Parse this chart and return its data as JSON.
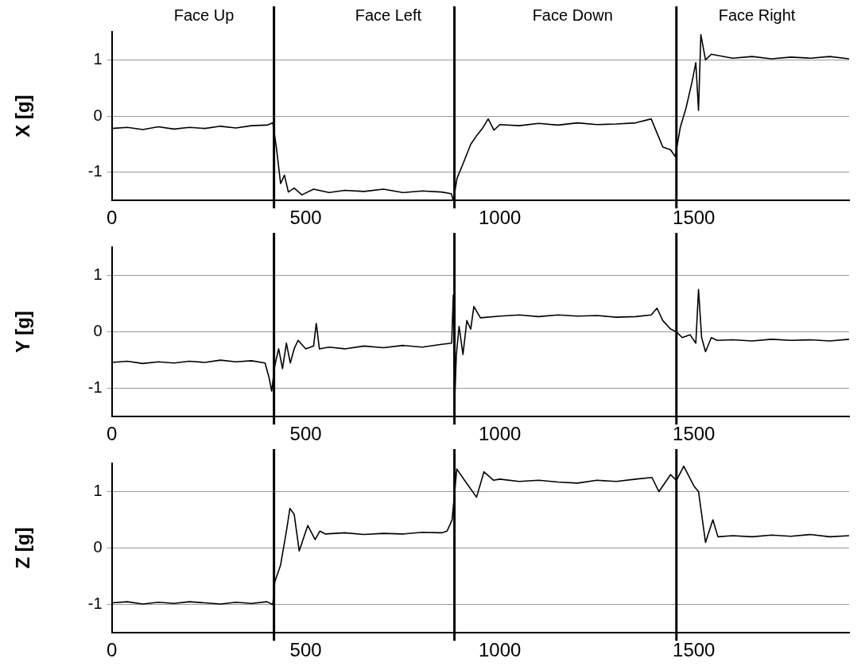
{
  "chart_data": [
    {
      "type": "line",
      "ylabel": "X [g]",
      "xlim": [
        0,
        1900
      ],
      "xticks": [
        0,
        500,
        1000,
        1500
      ],
      "ylim": [
        -1.5,
        1.5
      ],
      "yticks": [
        -1,
        0,
        1
      ],
      "grid": "y",
      "legend": false,
      "marker": "none",
      "line_style": "solid",
      "annotations": [
        "Face Up",
        "Face Left",
        "Face Down",
        "Face Right"
      ],
      "ref_lines": [
        {
          "axis": "x",
          "value": 418,
          "color": "#000000"
        },
        {
          "axis": "x",
          "value": 883,
          "color": "#000000"
        },
        {
          "axis": "x",
          "value": 1455,
          "color": "#000000"
        }
      ],
      "series": [
        {
          "color": "#000000",
          "x": [
            0,
            40,
            80,
            120,
            160,
            200,
            240,
            280,
            320,
            360,
            400,
            415,
            425,
            435,
            445,
            455,
            470,
            490,
            520,
            560,
            600,
            650,
            700,
            750,
            800,
            850,
            875,
            880,
            890,
            905,
            925,
            940,
            955,
            970,
            985,
            1000,
            1050,
            1100,
            1150,
            1200,
            1250,
            1300,
            1350,
            1390,
            1405,
            1420,
            1440,
            1452,
            1465,
            1480,
            1495,
            1505,
            1512,
            1518,
            1530,
            1545,
            1600,
            1650,
            1700,
            1750,
            1800,
            1850,
            1900
          ],
          "values": [
            -0.22,
            -0.2,
            -0.24,
            -0.19,
            -0.23,
            -0.2,
            -0.22,
            -0.18,
            -0.21,
            -0.17,
            -0.16,
            -0.12,
            -0.6,
            -1.2,
            -1.05,
            -1.35,
            -1.28,
            -1.4,
            -1.3,
            -1.36,
            -1.32,
            -1.34,
            -1.3,
            -1.36,
            -1.33,
            -1.35,
            -1.38,
            -1.5,
            -1.1,
            -0.85,
            -0.5,
            -0.35,
            -0.22,
            -0.05,
            -0.25,
            -0.15,
            -0.17,
            -0.13,
            -0.16,
            -0.12,
            -0.15,
            -0.14,
            -0.12,
            -0.05,
            -0.3,
            -0.55,
            -0.6,
            -0.72,
            -0.2,
            0.15,
            0.6,
            0.95,
            0.1,
            1.45,
            1.0,
            1.1,
            1.03,
            1.06,
            1.02,
            1.05,
            1.03,
            1.06,
            1.02
          ]
        }
      ]
    },
    {
      "type": "line",
      "ylabel": "Y [g]",
      "xlim": [
        0,
        1900
      ],
      "xticks": [
        0,
        500,
        1000,
        1500
      ],
      "ylim": [
        -1.5,
        1.5
      ],
      "yticks": [
        -1,
        0,
        1
      ],
      "grid": "y",
      "legend": false,
      "marker": "none",
      "line_style": "solid",
      "ref_lines": [
        {
          "axis": "x",
          "value": 418,
          "color": "#000000"
        },
        {
          "axis": "x",
          "value": 883,
          "color": "#000000"
        },
        {
          "axis": "x",
          "value": 1455,
          "color": "#000000"
        }
      ],
      "series": [
        {
          "color": "#000000",
          "x": [
            0,
            40,
            80,
            120,
            160,
            200,
            240,
            280,
            320,
            360,
            395,
            405,
            412,
            420,
            430,
            440,
            450,
            460,
            470,
            480,
            500,
            520,
            527,
            535,
            560,
            600,
            650,
            700,
            750,
            800,
            850,
            876,
            880,
            884,
            888,
            895,
            905,
            915,
            925,
            933,
            950,
            1000,
            1050,
            1100,
            1150,
            1200,
            1250,
            1300,
            1350,
            1390,
            1405,
            1420,
            1440,
            1455,
            1470,
            1490,
            1505,
            1512,
            1520,
            1530,
            1545,
            1560,
            1600,
            1650,
            1700,
            1750,
            1800,
            1850,
            1900
          ],
          "values": [
            -0.54,
            -0.52,
            -0.56,
            -0.53,
            -0.55,
            -0.52,
            -0.54,
            -0.5,
            -0.53,
            -0.51,
            -0.55,
            -0.8,
            -1.05,
            -0.6,
            -0.3,
            -0.65,
            -0.2,
            -0.55,
            -0.3,
            -0.15,
            -0.3,
            -0.25,
            0.15,
            -0.3,
            -0.27,
            -0.3,
            -0.25,
            -0.28,
            -0.24,
            -0.27,
            -0.22,
            -0.2,
            0.65,
            -1.15,
            -0.4,
            0.1,
            -0.4,
            0.2,
            0.05,
            0.45,
            0.25,
            0.28,
            0.3,
            0.27,
            0.3,
            0.28,
            0.29,
            0.26,
            0.27,
            0.3,
            0.42,
            0.2,
            0.05,
            0.0,
            -0.1,
            -0.05,
            -0.2,
            0.75,
            -0.1,
            -0.35,
            -0.1,
            -0.15,
            -0.14,
            -0.16,
            -0.13,
            -0.15,
            -0.14,
            -0.16,
            -0.13
          ]
        }
      ]
    },
    {
      "type": "line",
      "ylabel": "Z [g]",
      "xlim": [
        0,
        1900
      ],
      "xticks": [
        0,
        500,
        1000,
        1500
      ],
      "ylim": [
        -1.5,
        1.5
      ],
      "yticks": [
        -1,
        0,
        1
      ],
      "grid": "y",
      "legend": false,
      "marker": "none",
      "line_style": "solid",
      "ref_lines": [
        {
          "axis": "x",
          "value": 418,
          "color": "#000000"
        },
        {
          "axis": "x",
          "value": 883,
          "color": "#000000"
        },
        {
          "axis": "x",
          "value": 1455,
          "color": "#000000"
        }
      ],
      "series": [
        {
          "color": "#000000",
          "x": [
            0,
            40,
            80,
            120,
            160,
            200,
            240,
            280,
            320,
            360,
            400,
            415,
            420,
            435,
            450,
            459,
            470,
            483,
            505,
            524,
            536,
            550,
            600,
            650,
            700,
            750,
            800,
            850,
            864,
            877,
            889,
            909,
            940,
            959,
            984,
            1000,
            1050,
            1100,
            1150,
            1200,
            1250,
            1300,
            1350,
            1392,
            1410,
            1440,
            1455,
            1474,
            1500,
            1512,
            1530,
            1549,
            1562,
            1600,
            1650,
            1700,
            1750,
            1800,
            1850,
            1900
          ],
          "values": [
            -0.97,
            -0.95,
            -0.99,
            -0.96,
            -0.98,
            -0.95,
            -0.97,
            -0.99,
            -0.96,
            -0.98,
            -0.95,
            -1.0,
            -0.6,
            -0.3,
            0.3,
            0.7,
            0.6,
            -0.05,
            0.4,
            0.15,
            0.3,
            0.25,
            0.27,
            0.24,
            0.26,
            0.25,
            0.28,
            0.27,
            0.3,
            0.5,
            1.4,
            1.2,
            0.9,
            1.35,
            1.2,
            1.22,
            1.18,
            1.2,
            1.17,
            1.15,
            1.2,
            1.18,
            1.22,
            1.25,
            1.0,
            1.3,
            1.2,
            1.45,
            1.1,
            1.0,
            0.1,
            0.5,
            0.2,
            0.22,
            0.2,
            0.23,
            0.21,
            0.24,
            0.2,
            0.22
          ]
        }
      ]
    }
  ]
}
